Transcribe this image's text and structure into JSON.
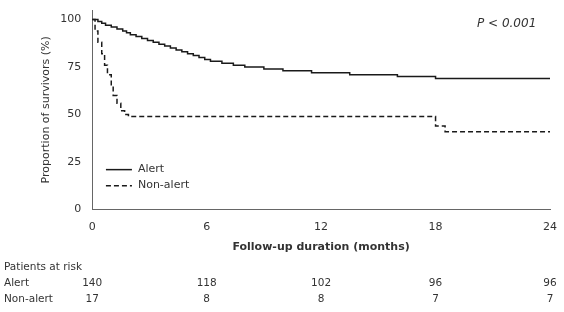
{
  "chart_data": {
    "type": "step",
    "xlabel": "Follow-up duration (months)",
    "ylabel": "Proportion of survivors (%)",
    "annotation": "P < 0.001",
    "xlim": [
      0,
      24
    ],
    "ylim": [
      0,
      105
    ],
    "xticks": [
      0,
      6,
      12,
      18,
      24
    ],
    "yticks": [
      0,
      25,
      50,
      75,
      100
    ],
    "grid": false,
    "legend": "lower left",
    "series": [
      {
        "name": "Alert",
        "color": "#1a1a1a",
        "line_style": "solid",
        "x": [
          0,
          0.3,
          0.5,
          0.7,
          1.0,
          1.3,
          1.6,
          1.8,
          2.0,
          2.3,
          2.6,
          2.9,
          3.2,
          3.5,
          3.8,
          4.1,
          4.4,
          4.7,
          5.0,
          5.3,
          5.6,
          5.9,
          6.2,
          6.5,
          6.8,
          7.1,
          7.4,
          7.7,
          8.0,
          8.5,
          9.0,
          9.5,
          10.0,
          10.5,
          11.0,
          11.5,
          12.0,
          12.5,
          13.0,
          13.5,
          14.0,
          14.5,
          15.0,
          15.5,
          16.0,
          16.5,
          17.0,
          17.5,
          18.0,
          19.0,
          24.0
        ],
        "values": [
          100,
          99,
          98,
          97,
          96,
          95,
          94,
          93,
          92,
          91,
          90,
          89,
          88,
          87,
          86,
          85,
          84,
          83,
          82,
          81,
          80,
          79,
          78,
          78,
          77,
          77,
          76,
          76,
          75,
          75,
          74,
          74,
          73,
          73,
          73,
          72,
          72,
          72,
          72,
          71,
          71,
          71,
          71,
          71,
          70,
          70,
          70,
          70,
          69,
          69,
          69
        ]
      },
      {
        "name": "Non-alert",
        "color": "#1a1a1a",
        "line_style": "dashed",
        "x": [
          0,
          0.15,
          0.3,
          0.5,
          0.65,
          0.8,
          1.0,
          1.1,
          1.3,
          1.5,
          1.7,
          1.9,
          2.1,
          2.5,
          3.0,
          3.5,
          17.5,
          18.0,
          18.5,
          19.0,
          24.0
        ],
        "values": [
          100,
          94,
          88,
          82,
          76,
          71,
          65,
          60,
          56,
          52,
          50,
          49,
          49,
          49,
          49,
          49,
          49,
          44,
          41,
          41,
          41
        ]
      }
    ],
    "risk_table": {
      "title": "Patients at risk",
      "x": [
        0,
        6,
        12,
        18,
        24
      ],
      "rows": [
        {
          "name": "Alert",
          "values": [
            140,
            118,
            102,
            96,
            96
          ]
        },
        {
          "name": "Non-alert",
          "values": [
            17,
            8,
            8,
            7,
            7
          ]
        }
      ]
    }
  }
}
